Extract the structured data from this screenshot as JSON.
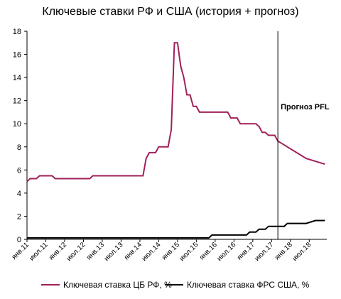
{
  "chart_data": {
    "type": "line",
    "title": "Ключевые ставки РФ и США (история + прогноз)",
    "xlabel": "",
    "ylabel": "",
    "ylim": [
      0,
      18
    ],
    "yticks": [
      0,
      2,
      4,
      6,
      8,
      10,
      12,
      14,
      16,
      18
    ],
    "x_range": [
      "2011-01",
      "2018-12"
    ],
    "x_tick_labels": [
      {
        "label": "янв.11",
        "date": "2011-01"
      },
      {
        "label": "июл.11",
        "date": "2011-07"
      },
      {
        "label": "янв.12",
        "date": "2012-01"
      },
      {
        "label": "июл.12",
        "date": "2012-07"
      },
      {
        "label": "янв.13",
        "date": "2013-01"
      },
      {
        "label": "июл.13",
        "date": "2013-07"
      },
      {
        "label": "янв.14",
        "date": "2014-01"
      },
      {
        "label": "июл.14",
        "date": "2014-07"
      },
      {
        "label": "янв.15",
        "date": "2015-01"
      },
      {
        "label": "июл.15",
        "date": "2015-07"
      },
      {
        "label": "янв.16",
        "date": "2016-01"
      },
      {
        "label": "июл.16",
        "date": "2016-07"
      },
      {
        "label": "янв.17",
        "date": "2017-01"
      },
      {
        "label": "июл.17",
        "date": "2017-07"
      },
      {
        "label": "янв.18",
        "date": "2018-01"
      },
      {
        "label": "июл.18",
        "date": "2018-07"
      }
    ],
    "forecast_marker": {
      "date": "2017-09",
      "label": "Прогноз PFL"
    },
    "legend_position": "bottom",
    "grid": false,
    "series": [
      {
        "name": "Ключевая ставка ЦБ РФ, %",
        "color": "#a0205a",
        "points": [
          [
            "2011-01",
            5.0
          ],
          [
            "2011-02",
            5.25
          ],
          [
            "2011-04",
            5.25
          ],
          [
            "2011-05",
            5.5
          ],
          [
            "2011-09",
            5.5
          ],
          [
            "2011-10",
            5.25
          ],
          [
            "2012-09",
            5.25
          ],
          [
            "2012-10",
            5.5
          ],
          [
            "2014-02",
            5.5
          ],
          [
            "2014-03",
            7.0
          ],
          [
            "2014-04",
            7.5
          ],
          [
            "2014-06",
            7.5
          ],
          [
            "2014-07",
            8.0
          ],
          [
            "2014-10",
            8.0
          ],
          [
            "2014-11",
            9.5
          ],
          [
            "2014-12",
            17.0
          ],
          [
            "2015-01",
            17.0
          ],
          [
            "2015-02",
            15.0
          ],
          [
            "2015-03",
            14.0
          ],
          [
            "2015-04",
            12.5
          ],
          [
            "2015-05",
            12.5
          ],
          [
            "2015-06",
            11.5
          ],
          [
            "2015-07",
            11.5
          ],
          [
            "2015-08",
            11.0
          ],
          [
            "2016-05",
            11.0
          ],
          [
            "2016-06",
            10.5
          ],
          [
            "2016-08",
            10.5
          ],
          [
            "2016-09",
            10.0
          ],
          [
            "2017-02",
            10.0
          ],
          [
            "2017-03",
            9.75
          ],
          [
            "2017-04",
            9.25
          ],
          [
            "2017-05",
            9.25
          ],
          [
            "2017-06",
            9.0
          ],
          [
            "2017-08",
            9.0
          ],
          [
            "2017-09",
            8.5
          ],
          [
            "2018-06",
            7.0
          ],
          [
            "2018-12",
            6.5
          ]
        ]
      },
      {
        "name": "Ключевая ставка ФРС США, %",
        "color": "#000000",
        "points": [
          [
            "2011-01",
            0.125
          ],
          [
            "2015-11",
            0.125
          ],
          [
            "2015-12",
            0.375
          ],
          [
            "2016-11",
            0.375
          ],
          [
            "2016-12",
            0.625
          ],
          [
            "2017-02",
            0.625
          ],
          [
            "2017-03",
            0.875
          ],
          [
            "2017-05",
            0.875
          ],
          [
            "2017-06",
            1.125
          ],
          [
            "2017-11",
            1.125
          ],
          [
            "2017-12",
            1.375
          ],
          [
            "2018-06",
            1.375
          ],
          [
            "2018-09",
            1.625
          ],
          [
            "2018-12",
            1.625
          ]
        ]
      }
    ]
  }
}
